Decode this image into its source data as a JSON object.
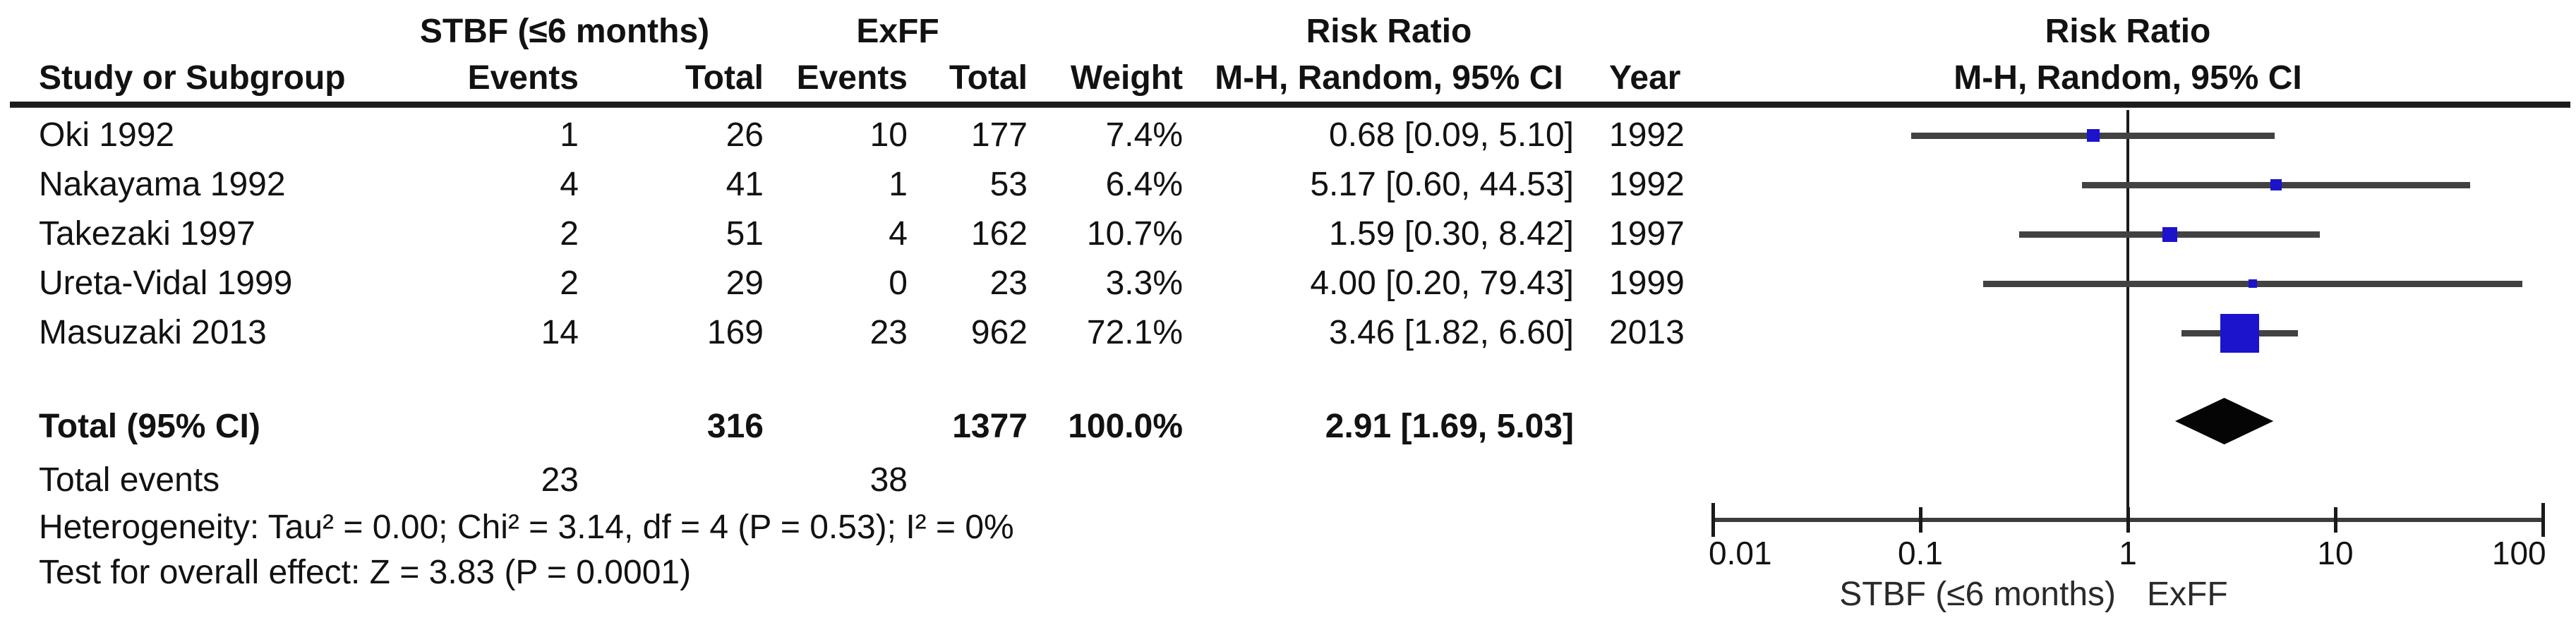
{
  "table": {
    "group1_header": "STBF (≤6 months)",
    "group2_header": "ExFF",
    "risk_ratio_header": "Risk Ratio",
    "mh_header": "M-H, Random, 95% CI",
    "col_study": "Study or Subgroup",
    "col_events1": "Events",
    "col_total1": "Total",
    "col_events2": "Events",
    "col_total2": "Total",
    "col_weight": "Weight",
    "col_year": "Year",
    "rows": [
      {
        "study": "Oki 1992",
        "e1": "1",
        "t1": "26",
        "e2": "10",
        "t2": "177",
        "weight": "7.4%",
        "ci": "0.68 [0.09, 5.10]",
        "year": "1992"
      },
      {
        "study": "Nakayama 1992",
        "e1": "4",
        "t1": "41",
        "e2": "1",
        "t2": "53",
        "weight": "6.4%",
        "ci": "5.17 [0.60, 44.53]",
        "year": "1992"
      },
      {
        "study": "Takezaki 1997",
        "e1": "2",
        "t1": "51",
        "e2": "4",
        "t2": "162",
        "weight": "10.7%",
        "ci": "1.59 [0.30, 8.42]",
        "year": "1997"
      },
      {
        "study": "Ureta-Vidal 1999",
        "e1": "2",
        "t1": "29",
        "e2": "0",
        "t2": "23",
        "weight": "3.3%",
        "ci": "4.00 [0.20, 79.43]",
        "year": "1999"
      },
      {
        "study": "Masuzaki 2013",
        "e1": "14",
        "t1": "169",
        "e2": "23",
        "t2": "962",
        "weight": "72.1%",
        "ci": "3.46 [1.82, 6.60]",
        "year": "2013"
      }
    ],
    "total_row": {
      "label": "Total (95% CI)",
      "t1": "316",
      "t2": "1377",
      "weight": "100.0%",
      "ci": "2.91 [1.69, 5.03]"
    },
    "total_events": {
      "label": "Total events",
      "e1": "23",
      "e2": "38"
    },
    "heterogeneity": "Heterogeneity: Tau² = 0.00; Chi² = 3.14, df = 4 (P = 0.53); I² = 0%",
    "overall_effect": "Test for overall effect: Z = 3.83 (P = 0.0001)"
  },
  "plot": {
    "title": "Risk Ratio",
    "subtitle": "M-H, Random, 95% CI",
    "axis_tick_labels": [
      "0.01",
      "0.1",
      "1",
      "10",
      "100"
    ],
    "favours_left": "STBF (≤6 months)",
    "favours_right": "ExFF",
    "colors": {
      "marker": "#1c13cd",
      "ci_line": "#424242",
      "diamond": "#050505",
      "axis": "#3c3c3c"
    }
  },
  "chart_data": {
    "type": "forest",
    "effect_measure": "Risk Ratio",
    "model": "Mantel-Haenszel, Random effects, 95% CI",
    "x_scale": "log10",
    "x_ticks": [
      0.01,
      0.1,
      1,
      10,
      100
    ],
    "xlim": [
      0.01,
      100
    ],
    "group_left": "STBF (≤6 months)",
    "group_right": "ExFF",
    "studies": [
      {
        "study": "Oki 1992",
        "events_stbf": 1,
        "total_stbf": 26,
        "events_exff": 10,
        "total_exff": 177,
        "weight_pct": 7.4,
        "rr": 0.68,
        "ci_low": 0.09,
        "ci_high": 5.1,
        "year": 1992
      },
      {
        "study": "Nakayama 1992",
        "events_stbf": 4,
        "total_stbf": 41,
        "events_exff": 1,
        "total_exff": 53,
        "weight_pct": 6.4,
        "rr": 5.17,
        "ci_low": 0.6,
        "ci_high": 44.53,
        "year": 1992
      },
      {
        "study": "Takezaki 1997",
        "events_stbf": 2,
        "total_stbf": 51,
        "events_exff": 4,
        "total_exff": 162,
        "weight_pct": 10.7,
        "rr": 1.59,
        "ci_low": 0.3,
        "ci_high": 8.42,
        "year": 1997
      },
      {
        "study": "Ureta-Vidal 1999",
        "events_stbf": 2,
        "total_stbf": 29,
        "events_exff": 0,
        "total_exff": 23,
        "weight_pct": 3.3,
        "rr": 4.0,
        "ci_low": 0.2,
        "ci_high": 79.43,
        "year": 1999
      },
      {
        "study": "Masuzaki 2013",
        "events_stbf": 14,
        "total_stbf": 169,
        "events_exff": 23,
        "total_exff": 962,
        "weight_pct": 72.1,
        "rr": 3.46,
        "ci_low": 1.82,
        "ci_high": 6.6,
        "year": 2013
      }
    ],
    "total": {
      "label": "Total (95% CI)",
      "total_stbf": 316,
      "total_exff": 1377,
      "total_events_stbf": 23,
      "total_events_exff": 38,
      "weight_pct": 100.0,
      "rr": 2.91,
      "ci_low": 1.69,
      "ci_high": 5.03
    },
    "heterogeneity": {
      "tau2": 0.0,
      "chi2": 3.14,
      "df": 4,
      "p": 0.53,
      "i2_pct": 0
    },
    "overall_effect": {
      "z": 3.83,
      "p": 0.0001
    }
  }
}
